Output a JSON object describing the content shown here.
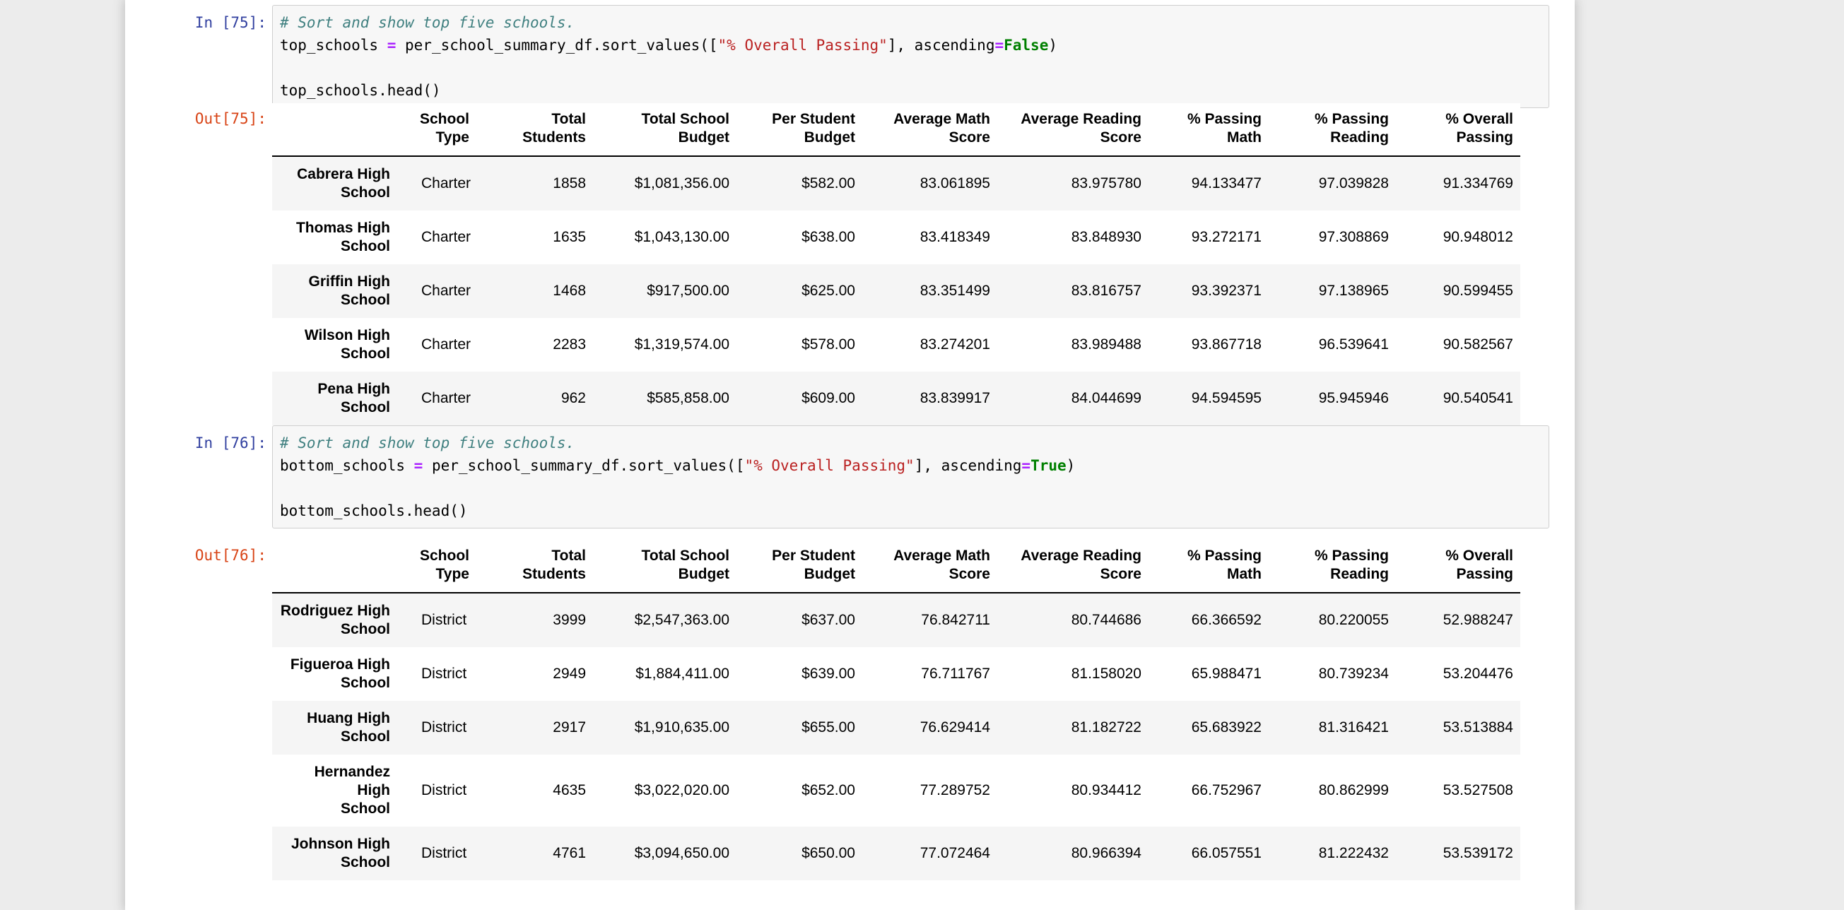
{
  "colors": {
    "page_bg": "#ECECEC",
    "panel_bg": "#FFFFFF",
    "input_bg": "#F7F7F7",
    "input_border": "#CFCFCF",
    "in_prompt": "#303F9F",
    "out_prompt": "#D84315",
    "comment": "#408080",
    "operator": "#AA22FF",
    "keyword": "#008000",
    "string": "#BA2121",
    "stripe": "#F5F5F5",
    "header_border": "#000000"
  },
  "cells": [
    {
      "in_label": "In [75]:",
      "out_label": "Out[75]:",
      "code": [
        [
          {
            "c": "comment",
            "t": "# Sort and show top five schools."
          }
        ],
        [
          {
            "c": "plain",
            "t": "top_schools "
          },
          {
            "c": "op",
            "t": "="
          },
          {
            "c": "plain",
            "t": " per_school_summary_df.sort_values(["
          },
          {
            "c": "str",
            "t": "\"% Overall Passing\""
          },
          {
            "c": "plain",
            "t": "], ascending"
          },
          {
            "c": "op",
            "t": "="
          },
          {
            "c": "kw",
            "t": "False"
          },
          {
            "c": "plain",
            "t": ")"
          }
        ],
        [],
        [
          {
            "c": "plain",
            "t": "top_schools.head()"
          }
        ]
      ],
      "table": {
        "columns": [
          [
            "School",
            "Type"
          ],
          [
            "Total",
            "Students"
          ],
          [
            "Total School",
            "Budget"
          ],
          [
            "Per Student",
            "Budget"
          ],
          [
            "Average Math",
            "Score"
          ],
          [
            "Average Reading",
            "Score"
          ],
          [
            "% Passing",
            "Math"
          ],
          [
            "% Passing",
            "Reading"
          ],
          [
            "% Overall",
            "Passing"
          ]
        ],
        "rows": [
          {
            "index": [
              "Cabrera High",
              "School"
            ],
            "values": [
              "Charter",
              "1858",
              "$1,081,356.00",
              "$582.00",
              "83.061895",
              "83.975780",
              "94.133477",
              "97.039828",
              "91.334769"
            ]
          },
          {
            "index": [
              "Thomas High",
              "School"
            ],
            "values": [
              "Charter",
              "1635",
              "$1,043,130.00",
              "$638.00",
              "83.418349",
              "83.848930",
              "93.272171",
              "97.308869",
              "90.948012"
            ]
          },
          {
            "index": [
              "Griffin High",
              "School"
            ],
            "values": [
              "Charter",
              "1468",
              "$917,500.00",
              "$625.00",
              "83.351499",
              "83.816757",
              "93.392371",
              "97.138965",
              "90.599455"
            ]
          },
          {
            "index": [
              "Wilson High",
              "School"
            ],
            "values": [
              "Charter",
              "2283",
              "$1,319,574.00",
              "$578.00",
              "83.274201",
              "83.989488",
              "93.867718",
              "96.539641",
              "90.582567"
            ]
          },
          {
            "index": [
              "Pena High",
              "School"
            ],
            "values": [
              "Charter",
              "962",
              "$585,858.00",
              "$609.00",
              "83.839917",
              "84.044699",
              "94.594595",
              "95.945946",
              "90.540541"
            ]
          }
        ]
      }
    },
    {
      "in_label": "In [76]:",
      "out_label": "Out[76]:",
      "code": [
        [
          {
            "c": "comment",
            "t": "# Sort and show top five schools."
          }
        ],
        [
          {
            "c": "plain",
            "t": "bottom_schools "
          },
          {
            "c": "op",
            "t": "="
          },
          {
            "c": "plain",
            "t": " per_school_summary_df.sort_values(["
          },
          {
            "c": "str",
            "t": "\"% Overall Passing\""
          },
          {
            "c": "plain",
            "t": "], ascending"
          },
          {
            "c": "op",
            "t": "="
          },
          {
            "c": "kw",
            "t": "True"
          },
          {
            "c": "plain",
            "t": ")"
          }
        ],
        [],
        [
          {
            "c": "plain",
            "t": "bottom_schools.head()"
          }
        ]
      ],
      "table": {
        "columns": [
          [
            "School",
            "Type"
          ],
          [
            "Total",
            "Students"
          ],
          [
            "Total School",
            "Budget"
          ],
          [
            "Per Student",
            "Budget"
          ],
          [
            "Average Math",
            "Score"
          ],
          [
            "Average Reading",
            "Score"
          ],
          [
            "% Passing",
            "Math"
          ],
          [
            "% Passing",
            "Reading"
          ],
          [
            "% Overall",
            "Passing"
          ]
        ],
        "rows": [
          {
            "index": [
              "Rodriguez High",
              "School"
            ],
            "values": [
              "District",
              "3999",
              "$2,547,363.00",
              "$637.00",
              "76.842711",
              "80.744686",
              "66.366592",
              "80.220055",
              "52.988247"
            ]
          },
          {
            "index": [
              "Figueroa High",
              "School"
            ],
            "values": [
              "District",
              "2949",
              "$1,884,411.00",
              "$639.00",
              "76.711767",
              "81.158020",
              "65.988471",
              "80.739234",
              "53.204476"
            ]
          },
          {
            "index": [
              "Huang High",
              "School"
            ],
            "values": [
              "District",
              "2917",
              "$1,910,635.00",
              "$655.00",
              "76.629414",
              "81.182722",
              "65.683922",
              "81.316421",
              "53.513884"
            ]
          },
          {
            "index": [
              "Hernandez High",
              "School"
            ],
            "values": [
              "District",
              "4635",
              "$3,022,020.00",
              "$652.00",
              "77.289752",
              "80.934412",
              "66.752967",
              "80.862999",
              "53.527508"
            ]
          },
          {
            "index": [
              "Johnson High",
              "School"
            ],
            "values": [
              "District",
              "4761",
              "$3,094,650.00",
              "$650.00",
              "77.072464",
              "80.966394",
              "66.057551",
              "81.222432",
              "53.539172"
            ]
          }
        ]
      }
    }
  ]
}
